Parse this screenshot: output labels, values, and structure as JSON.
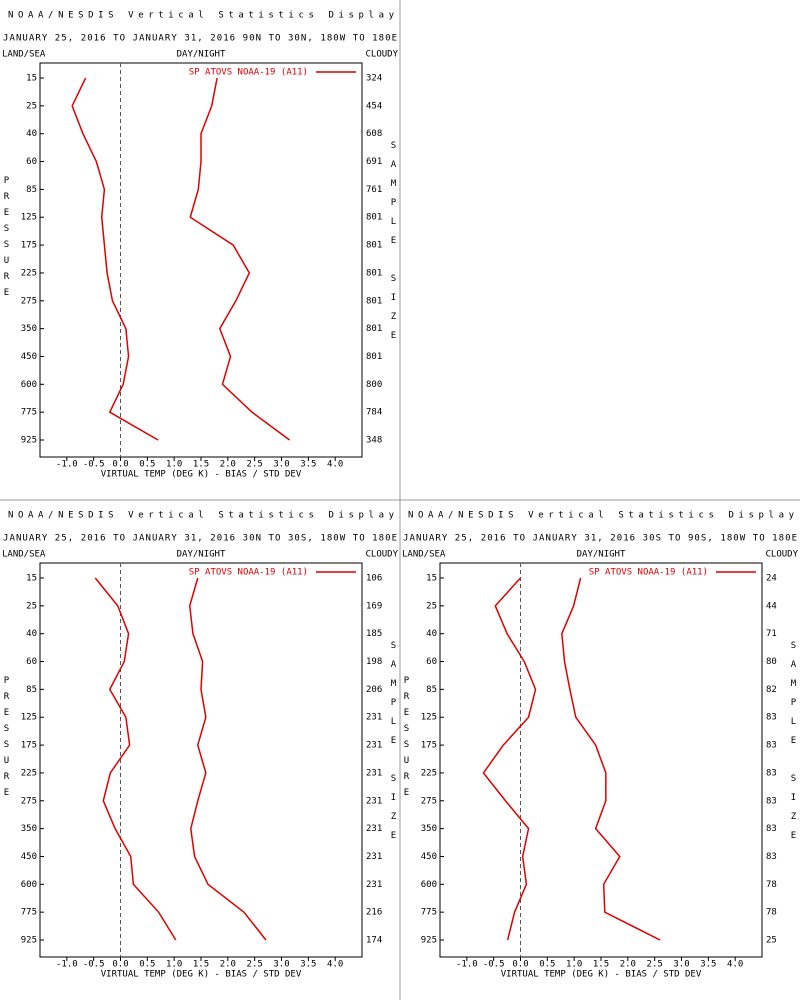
{
  "chart_data": [
    {
      "type": "line",
      "title": "NOAA/NESDIS Vertical Statistics Display",
      "subtitle": "JANUARY 25, 2016 TO JANUARY 31, 2016  90N TO 30N, 180W TO 180E",
      "left_label": "LAND/SEA",
      "center_label": "DAY/NIGHT",
      "right_label": "CLOUDY",
      "ylabel": "PRESSURE",
      "y2label": "SAMPLE SIZE",
      "xlabel": "VIRTUAL TEMP (DEG K) - BIAS / STD DEV",
      "categories": [
        15,
        25,
        40,
        60,
        85,
        125,
        175,
        225,
        275,
        350,
        450,
        600,
        775,
        925
      ],
      "sample_size": [
        324,
        454,
        608,
        691,
        761,
        801,
        801,
        801,
        801,
        801,
        801,
        800,
        784,
        348
      ],
      "series": [
        {
          "name": "SP ATOVS NOAA-19 (A11)",
          "color": "#e00000",
          "values": [
            -0.65,
            -0.9,
            -0.7,
            -0.45,
            -0.3,
            -0.35,
            -0.3,
            -0.25,
            -0.15,
            0.1,
            0.15,
            0.05,
            -0.2,
            0.7
          ]
        },
        {
          "color": "#e00000",
          "values": [
            1.8,
            1.7,
            1.5,
            1.5,
            1.45,
            1.3,
            2.1,
            2.4,
            2.15,
            1.85,
            2.05,
            1.9,
            2.45,
            3.15
          ]
        }
      ],
      "xlim": [
        -1.5,
        4.5
      ],
      "xticks": [
        {
          "value": -1,
          "label": "-1.0"
        },
        -0.5,
        {
          "value": 0,
          "label": "0.0"
        },
        0.5,
        {
          "value": 1,
          "label": "1.0"
        },
        1.5,
        {
          "value": 2,
          "label": "2.0"
        },
        2.5,
        {
          "value": 3,
          "label": "3.0"
        },
        3.5,
        {
          "value": 4,
          "label": "4.0"
        }
      ],
      "zero_line": true,
      "legend": "upper right"
    },
    {
      "type": "line",
      "title": "NOAA/NESDIS Vertical Statistics Display",
      "subtitle": "JANUARY 25, 2016 TO JANUARY 31, 2016  30N TO 30S, 180W TO 180E",
      "left_label": "LAND/SEA",
      "center_label": "DAY/NIGHT",
      "right_label": "CLOUDY",
      "ylabel": "PRESSURE",
      "y2label": "SAMPLE SIZE",
      "xlabel": "VIRTUAL TEMP (DEG K) - BIAS / STD DEV",
      "categories": [
        15,
        25,
        40,
        60,
        85,
        125,
        175,
        225,
        275,
        350,
        450,
        600,
        775,
        925
      ],
      "sample_size": [
        106,
        169,
        185,
        198,
        206,
        231,
        231,
        231,
        231,
        231,
        231,
        231,
        216,
        174
      ],
      "series": [
        {
          "name": "SP ATOVS NOAA-19 (A11)",
          "color": "#e00000",
          "values": [
            -0.47,
            -0.05,
            0.15,
            0.07,
            -0.2,
            0.1,
            0.17,
            -0.19,
            -0.32,
            -0.1,
            0.19,
            0.24,
            0.71,
            1.03
          ]
        },
        {
          "color": "#e00000",
          "values": [
            1.44,
            1.29,
            1.35,
            1.53,
            1.5,
            1.59,
            1.44,
            1.59,
            1.44,
            1.31,
            1.38,
            1.63,
            2.3,
            2.71
          ]
        }
      ],
      "xlim": [
        -1.5,
        4.5
      ],
      "xticks": [
        {
          "value": -1,
          "label": "-1.0"
        },
        -0.5,
        {
          "value": 0,
          "label": "0.0"
        },
        0.5,
        {
          "value": 1,
          "label": "1.0"
        },
        1.5,
        {
          "value": 2,
          "label": "2.0"
        },
        2.5,
        {
          "value": 3,
          "label": "3.0"
        },
        3.5,
        {
          "value": 4,
          "label": "4.0"
        }
      ],
      "zero_line": true,
      "legend": "upper right"
    },
    {
      "type": "line",
      "title": "NOAA/NESDIS Vertical Statistics Display",
      "subtitle": "JANUARY 25, 2016 TO JANUARY 31, 2016  30S TO 90S, 180W TO 180E",
      "left_label": "LAND/SEA",
      "center_label": "DAY/NIGHT",
      "right_label": "CLOUDY",
      "ylabel": "PRESSURE",
      "y2label": "SAMPLE SIZE",
      "xlabel": "VIRTUAL TEMP (DEG K) - BIAS / STD DEV",
      "categories": [
        15,
        25,
        40,
        60,
        85,
        125,
        175,
        225,
        275,
        350,
        450,
        600,
        775,
        925
      ],
      "sample_size": [
        24,
        44,
        71,
        80,
        82,
        83,
        83,
        83,
        83,
        83,
        83,
        78,
        78,
        25
      ],
      "series": [
        {
          "name": "SP ATOVS NOAA-19 (A11)",
          "color": "#e00000",
          "values": [
            0,
            -0.47,
            -0.25,
            0.07,
            0.28,
            0.15,
            -0.32,
            -0.69,
            -0.28,
            0.15,
            0.04,
            0.11,
            -0.11,
            -0.24
          ]
        },
        {
          "color": "#e00000",
          "values": [
            1.12,
            0.99,
            0.77,
            0.82,
            0.92,
            1.03,
            1.4,
            1.59,
            1.59,
            1.4,
            1.85,
            1.55,
            1.57,
            2.6
          ]
        }
      ],
      "xlim": [
        -1.5,
        4.5
      ],
      "xticks": [
        {
          "value": -1,
          "label": "-1.0"
        },
        -0.5,
        {
          "value": 0,
          "label": "0.0"
        },
        0.5,
        {
          "value": 1,
          "label": "1.0"
        },
        1.5,
        {
          "value": 2,
          "label": "2.0"
        },
        2.5,
        {
          "value": 3,
          "label": "3.0"
        },
        3.5,
        {
          "value": 4,
          "label": "4.0"
        }
      ],
      "zero_line": true,
      "legend": "upper right"
    }
  ]
}
